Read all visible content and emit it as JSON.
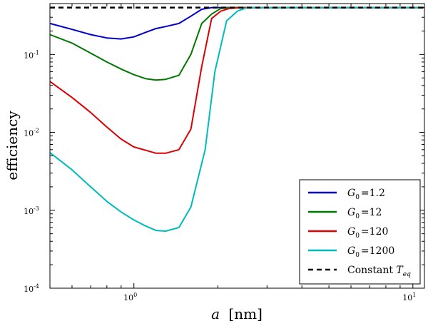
{
  "chart_data": {
    "type": "line",
    "xscale": "log",
    "yscale": "log",
    "xlim": [
      0.5,
      11
    ],
    "ylim": [
      0.0001,
      0.45
    ],
    "xlabel": "a",
    "xlabel_unit": "[nm]",
    "ylabel": "efficiency",
    "x_ticks": [
      {
        "value": 1,
        "base": "10",
        "exp": "0"
      },
      {
        "value": 10,
        "base": "10",
        "exp": "1"
      }
    ],
    "y_ticks": [
      {
        "value": 0.0001,
        "base": "10",
        "exp": "-4"
      },
      {
        "value": 0.001,
        "base": "10",
        "exp": "-3"
      },
      {
        "value": 0.01,
        "base": "10",
        "exp": "-2"
      },
      {
        "value": 0.1,
        "base": "10",
        "exp": "-1"
      }
    ],
    "legend_position": "bottom-right",
    "series": [
      {
        "name": "G0 = 1.2",
        "symbol": "G",
        "subscript": "0",
        "value_text": "=1.2",
        "color": "#0000cc",
        "dash": false,
        "x": [
          0.5,
          0.6,
          0.7,
          0.8,
          0.9,
          1.0,
          1.1,
          1.2,
          1.3,
          1.45,
          1.6,
          1.75,
          1.9,
          2.1,
          2.3,
          2.6,
          3.0,
          5.0,
          11.0
        ],
        "y": [
          0.25,
          0.21,
          0.18,
          0.163,
          0.158,
          0.168,
          0.192,
          0.215,
          0.228,
          0.25,
          0.31,
          0.38,
          0.4,
          0.4,
          0.4,
          0.4,
          0.4,
          0.4,
          0.4
        ]
      },
      {
        "name": "G0 = 12",
        "symbol": "G",
        "subscript": "0",
        "value_text": "=12",
        "color": "#007700",
        "dash": false,
        "x": [
          0.5,
          0.6,
          0.7,
          0.8,
          0.9,
          1.0,
          1.1,
          1.2,
          1.3,
          1.45,
          1.6,
          1.75,
          1.9,
          2.05,
          2.2,
          2.4,
          3.0,
          5.0,
          11.0
        ],
        "y": [
          0.18,
          0.14,
          0.104,
          0.08,
          0.065,
          0.055,
          0.049,
          0.047,
          0.048,
          0.054,
          0.1,
          0.25,
          0.33,
          0.39,
          0.4,
          0.4,
          0.4,
          0.4,
          0.4
        ]
      },
      {
        "name": "G0 = 120",
        "symbol": "G",
        "subscript": "0",
        "value_text": "=120",
        "color": "#dd0000",
        "dash": false,
        "x": [
          0.5,
          0.6,
          0.7,
          0.8,
          0.9,
          1.0,
          1.1,
          1.2,
          1.3,
          1.45,
          1.6,
          1.75,
          1.9,
          2.05,
          2.2,
          2.45,
          3.0,
          5.0,
          11.0
        ],
        "y": [
          0.045,
          0.028,
          0.018,
          0.0117,
          0.0082,
          0.0065,
          0.0059,
          0.0054,
          0.0054,
          0.006,
          0.011,
          0.07,
          0.29,
          0.36,
          0.39,
          0.4,
          0.4,
          0.4,
          0.4
        ]
      },
      {
        "name": "G0 = 1200",
        "symbol": "G",
        "subscript": "0",
        "value_text": "=1200",
        "color": "#00bbbb",
        "dash": false,
        "x": [
          0.5,
          0.6,
          0.7,
          0.8,
          0.9,
          1.0,
          1.1,
          1.2,
          1.3,
          1.45,
          1.6,
          1.8,
          1.95,
          2.15,
          2.35,
          2.55,
          3.0,
          5.0,
          11.0
        ],
        "y": [
          0.0055,
          0.0033,
          0.002,
          0.0013,
          0.00095,
          0.00075,
          0.00063,
          0.00055,
          0.00054,
          0.0006,
          0.0011,
          0.006,
          0.06,
          0.27,
          0.36,
          0.4,
          0.4,
          0.4,
          0.4
        ]
      },
      {
        "name": "Constant Teq",
        "symbol": "Constant T",
        "subscript": "eq",
        "value_text": "",
        "color": "#000000",
        "dash": true,
        "x": [
          0.5,
          11.0
        ],
        "y": [
          0.4,
          0.4
        ]
      }
    ]
  }
}
